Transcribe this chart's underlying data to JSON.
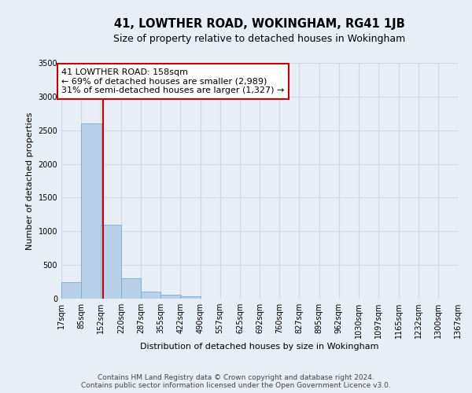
{
  "title": "41, LOWTHER ROAD, WOKINGHAM, RG41 1JB",
  "subtitle": "Size of property relative to detached houses in Wokingham",
  "xlabel": "Distribution of detached houses by size in Wokingham",
  "ylabel": "Number of detached properties",
  "footer_line1": "Contains HM Land Registry data © Crown copyright and database right 2024.",
  "footer_line2": "Contains public sector information licensed under the Open Government Licence v3.0.",
  "annotation_line1": "41 LOWTHER ROAD: 158sqm",
  "annotation_line2": "← 69% of detached houses are smaller (2,989)",
  "annotation_line3": "31% of semi-detached houses are larger (1,327) →",
  "property_size": 158,
  "bar_edges": [
    17,
    85,
    152,
    220,
    287,
    355,
    422,
    490,
    557,
    625,
    692,
    760,
    827,
    895,
    962,
    1030,
    1097,
    1165,
    1232,
    1300,
    1367
  ],
  "bar_heights": [
    250,
    2600,
    1100,
    300,
    100,
    60,
    30,
    0,
    0,
    0,
    0,
    0,
    0,
    0,
    0,
    0,
    0,
    0,
    0,
    0
  ],
  "bar_color": "#b8d0e8",
  "bar_edgecolor": "#7aaad0",
  "red_line_color": "#cc0000",
  "grid_color": "#d0d8e8",
  "background_color": "#e8eef5",
  "ylim": [
    0,
    3500
  ],
  "yticks": [
    0,
    500,
    1000,
    1500,
    2000,
    2500,
    3000,
    3500
  ],
  "annotation_box_color": "#ffffff",
  "annotation_box_edgecolor": "#cc0000",
  "title_fontsize": 10.5,
  "subtitle_fontsize": 9,
  "axis_label_fontsize": 8,
  "tick_fontsize": 7,
  "footer_fontsize": 6.5,
  "annotation_fontsize": 8
}
